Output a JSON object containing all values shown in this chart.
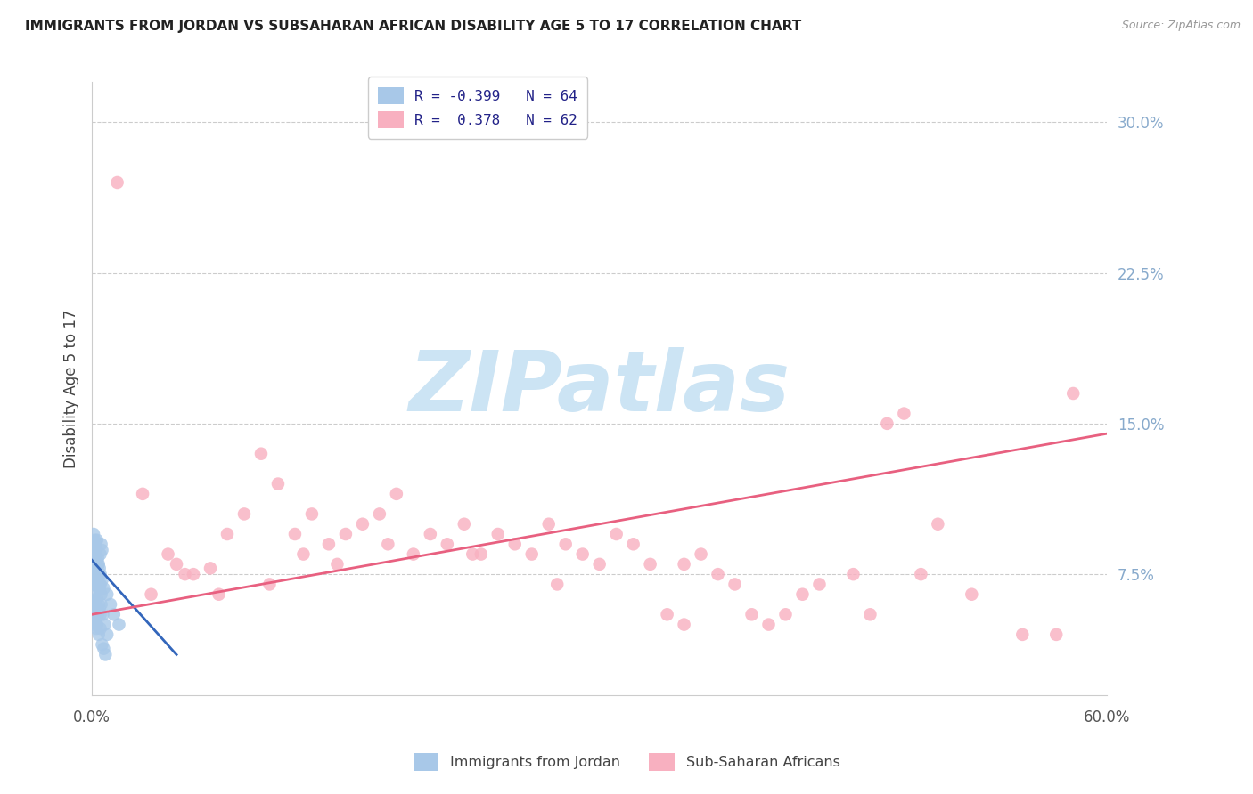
{
  "title": "IMMIGRANTS FROM JORDAN VS SUBSAHARAN AFRICAN DISABILITY AGE 5 TO 17 CORRELATION CHART",
  "source": "Source: ZipAtlas.com",
  "ylabel": "Disability Age 5 to 17",
  "ytick_values": [
    7.5,
    15.0,
    22.5,
    30.0
  ],
  "xlim": [
    0.0,
    60.0
  ],
  "ylim_bottom": 1.5,
  "ylim_top": 32.0,
  "color_jordan": "#a8c8e8",
  "color_jordan_line": "#3366bb",
  "color_africa": "#f8b0c0",
  "color_africa_line": "#e86080",
  "watermark_color": "#cce4f4",
  "background_color": "#ffffff",
  "grid_color": "#cccccc",
  "right_tick_color": "#88aacc",
  "jordan_x": [
    0.15,
    0.2,
    0.25,
    0.3,
    0.35,
    0.4,
    0.45,
    0.5,
    0.55,
    0.6,
    0.15,
    0.2,
    0.25,
    0.3,
    0.35,
    0.4,
    0.45,
    0.5,
    0.55,
    0.6,
    0.1,
    0.15,
    0.2,
    0.25,
    0.3,
    0.35,
    0.4,
    0.45,
    0.5,
    0.1,
    0.15,
    0.2,
    0.25,
    0.3,
    0.4,
    0.5,
    0.6,
    0.7,
    0.8,
    0.2,
    0.25,
    0.3,
    0.35,
    0.5,
    0.7,
    0.9,
    1.1,
    1.3,
    1.6,
    0.1,
    0.12,
    0.14,
    0.16,
    0.18,
    0.22,
    0.28,
    0.33,
    0.38,
    0.45,
    0.55,
    0.65,
    0.75,
    0.9
  ],
  "jordan_y": [
    8.5,
    9.0,
    8.8,
    9.2,
    8.3,
    8.0,
    7.8,
    8.5,
    9.0,
    8.7,
    7.0,
    7.5,
    7.2,
    7.8,
    7.3,
    6.8,
    7.0,
    7.5,
    6.5,
    7.2,
    6.0,
    6.5,
    6.2,
    5.8,
    6.3,
    5.5,
    6.0,
    5.8,
    5.5,
    5.0,
    5.5,
    5.2,
    4.8,
    5.0,
    4.5,
    4.8,
    4.0,
    3.8,
    3.5,
    7.8,
    8.2,
    7.5,
    8.0,
    7.0,
    6.8,
    6.5,
    6.0,
    5.5,
    5.0,
    9.5,
    9.0,
    8.8,
    9.2,
    8.5,
    8.0,
    7.8,
    7.5,
    7.0,
    6.8,
    6.0,
    5.5,
    5.0,
    4.5
  ],
  "africa_x": [
    1.5,
    3.0,
    4.5,
    5.0,
    6.0,
    7.0,
    8.0,
    9.0,
    10.0,
    11.0,
    12.0,
    13.0,
    14.0,
    15.0,
    16.0,
    17.0,
    18.0,
    19.0,
    20.0,
    21.0,
    22.0,
    23.0,
    24.0,
    25.0,
    26.0,
    27.0,
    28.0,
    29.0,
    30.0,
    31.0,
    32.0,
    33.0,
    34.0,
    35.0,
    36.0,
    37.0,
    38.0,
    39.0,
    40.0,
    41.0,
    42.0,
    43.0,
    45.0,
    46.0,
    47.0,
    48.0,
    49.0,
    50.0,
    52.0,
    55.0,
    57.0,
    58.0,
    3.5,
    5.5,
    7.5,
    10.5,
    12.5,
    14.5,
    17.5,
    22.5,
    27.5,
    35.0
  ],
  "africa_y": [
    27.0,
    11.5,
    8.5,
    8.0,
    7.5,
    7.8,
    9.5,
    10.5,
    13.5,
    12.0,
    9.5,
    10.5,
    9.0,
    9.5,
    10.0,
    10.5,
    11.5,
    8.5,
    9.5,
    9.0,
    10.0,
    8.5,
    9.5,
    9.0,
    8.5,
    10.0,
    9.0,
    8.5,
    8.0,
    9.5,
    9.0,
    8.0,
    5.5,
    8.0,
    8.5,
    7.5,
    7.0,
    5.5,
    5.0,
    5.5,
    6.5,
    7.0,
    7.5,
    5.5,
    15.0,
    15.5,
    7.5,
    10.0,
    6.5,
    4.5,
    4.5,
    16.5,
    6.5,
    7.5,
    6.5,
    7.0,
    8.5,
    8.0,
    9.0,
    8.5,
    7.0,
    5.0
  ],
  "jordan_line_x": [
    0.0,
    5.0
  ],
  "jordan_line_y": [
    8.2,
    3.5
  ],
  "africa_line_x": [
    0.0,
    60.0
  ],
  "africa_line_y": [
    5.5,
    14.5
  ]
}
